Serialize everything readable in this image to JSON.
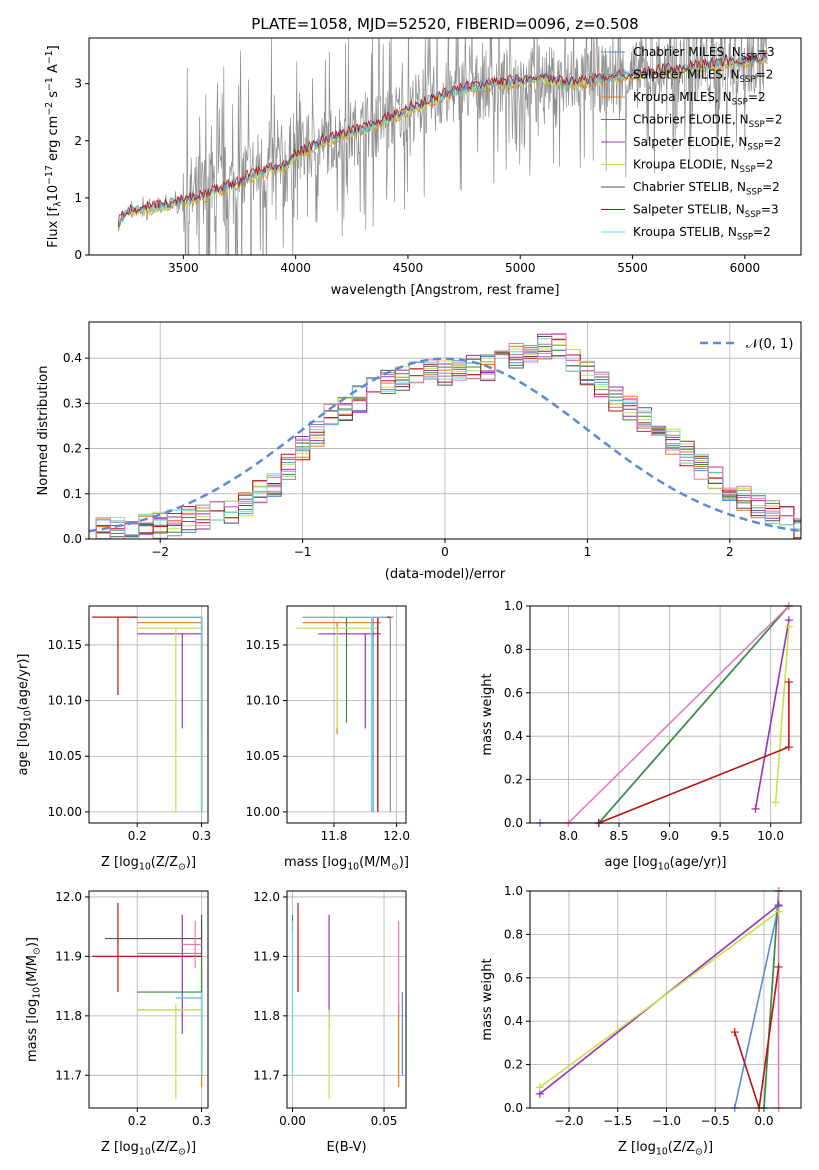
{
  "figure": {
    "title": "PLATE=1058, MJD=52520, FIBERID=0096, z=0.508",
    "models": [
      {
        "name": "Chabrier MILES, N",
        "n": "3",
        "color": "#5b8bd6"
      },
      {
        "name": "Salpeter MILES, N",
        "n": "2",
        "color": "#8e8e8e"
      },
      {
        "name": "Kroupa MILES, N",
        "n": "2",
        "color": "#e07b1f"
      },
      {
        "name": "Chabrier ELODIE, N",
        "n": "2",
        "color": "#3a8a3a"
      },
      {
        "name": "Salpeter ELODIE, N",
        "n": "2",
        "color": "#9632b8"
      },
      {
        "name": "Kroupa ELODIE, N",
        "n": "2",
        "color": "#c8e04a"
      },
      {
        "name": "Chabrier STELIB, N",
        "n": "2",
        "color": "#555555"
      },
      {
        "name": "Salpeter STELIB, N",
        "n": "3",
        "color": "#b81414"
      },
      {
        "name": "Kroupa STELIB, N",
        "n": "2",
        "color": "#70d4d8"
      }
    ],
    "ssp_subscript": "SSP",
    "pink_color": "#e97ab8"
  },
  "chart_data": [
    {
      "id": "spectrum",
      "type": "line",
      "title": "PLATE=1058, MJD=52520, FIBERID=0096, z=0.508",
      "xlabel": "wavelength [Angstrom, rest frame]",
      "ylabel": "Flux [f",
      "ylabel_parts": [
        "Flux [f",
        "λ",
        "10",
        "−17",
        " erg cm",
        "−2",
        " s",
        "−1",
        " A",
        "−1",
        "]"
      ],
      "xlim": [
        3080,
        6250
      ],
      "ylim": [
        0,
        3.8
      ],
      "xticks": [
        3500,
        4000,
        4500,
        5000,
        5500,
        6000
      ],
      "yticks": [
        0,
        1,
        2,
        3
      ],
      "data_range": [
        3210,
        6100
      ],
      "continuum": {
        "x": [
          3210,
          3250,
          3300,
          3400,
          3500,
          3600,
          3700,
          3750,
          3800,
          3900,
          3950,
          4000,
          4100,
          4200,
          4300,
          4400,
          4500,
          4600,
          4700,
          4800,
          4900,
          5000,
          5100,
          5200,
          5300,
          5400,
          5500,
          5600,
          5700,
          5800,
          5900,
          6000,
          6100
        ],
        "y": [
          0.55,
          0.75,
          0.8,
          0.85,
          0.95,
          1.05,
          1.2,
          1.25,
          1.4,
          1.5,
          1.55,
          1.75,
          1.95,
          2.1,
          2.2,
          2.35,
          2.55,
          2.7,
          2.85,
          2.95,
          3.0,
          3.05,
          3.1,
          3.0,
          3.05,
          3.1,
          3.15,
          3.2,
          3.25,
          3.3,
          3.35,
          3.4,
          3.45
        ]
      },
      "legend": "top-right",
      "grid": false
    },
    {
      "id": "residuals",
      "type": "line",
      "xlabel": "(data-model)/error",
      "ylabel": "Normed distribution",
      "xlim": [
        -2.5,
        2.5
      ],
      "ylim": [
        0,
        0.48
      ],
      "xticks": [
        -2,
        -1,
        0,
        1,
        2
      ],
      "yticks": [
        0.0,
        0.1,
        0.2,
        0.3,
        0.4
      ],
      "gaussian_label": "𝒩(0, 1)",
      "gaussian_color": "#5b8bd6",
      "bin_width": 0.1,
      "histogram_envelope": {
        "x": [
          -2.5,
          -2.0,
          -1.5,
          -1.2,
          -1.0,
          -0.8,
          -0.5,
          -0.2,
          0.0,
          0.3,
          0.6,
          0.8,
          1.0,
          1.2,
          1.5,
          1.8,
          2.0,
          2.3,
          2.5
        ],
        "y": [
          0.02,
          0.03,
          0.06,
          0.12,
          0.2,
          0.27,
          0.33,
          0.37,
          0.37,
          0.38,
          0.42,
          0.43,
          0.37,
          0.31,
          0.24,
          0.16,
          0.1,
          0.06,
          0.04
        ]
      },
      "legend": "top-right",
      "grid": true
    },
    {
      "id": "age-vs-z",
      "type": "scatter",
      "xlabel": "Z [log",
      "ylabel": "age  [log",
      "xlim": [
        0.125,
        0.31
      ],
      "ylim": [
        9.99,
        10.185
      ],
      "xticks": [
        0.2,
        0.3
      ],
      "yticks": [
        10.0,
        10.05,
        10.1,
        10.15
      ],
      "points": [
        {
          "model": 0,
          "x": 0.3,
          "y": 10.175,
          "xerr": [
            0.19,
            0.3
          ],
          "yerr": [
            10.0,
            10.175
          ]
        },
        {
          "model": 1,
          "x": 0.3,
          "y": 10.175,
          "xerr": [
            0.2,
            0.3
          ],
          "yerr": [
            10.0,
            10.175
          ]
        },
        {
          "model": 2,
          "x": 0.3,
          "y": 10.17,
          "xerr": [
            0.2,
            0.3
          ],
          "yerr": [
            10.0,
            10.17
          ]
        },
        {
          "model": 3,
          "x": 0.3,
          "y": 10.175,
          "xerr": [
            0.2,
            0.3
          ],
          "yerr": [
            10.0,
            10.175
          ]
        },
        {
          "model": 4,
          "x": 0.27,
          "y": 10.16,
          "xerr": [
            0.2,
            0.3
          ],
          "yerr": [
            10.075,
            10.16
          ]
        },
        {
          "model": 5,
          "x": 0.26,
          "y": 10.165,
          "xerr": [
            0.2,
            0.3
          ],
          "yerr": [
            10.0,
            10.165
          ]
        },
        {
          "model": 6,
          "x": 0.3,
          "y": 10.175,
          "xerr": [
            0.2,
            0.3
          ],
          "yerr": [
            10.07,
            10.175
          ]
        },
        {
          "model": 7,
          "x": 0.17,
          "y": 10.175,
          "xerr": [
            0.13,
            0.3
          ],
          "yerr": [
            10.105,
            10.175
          ]
        },
        {
          "model": 8,
          "x": 0.3,
          "y": 10.175,
          "xerr": [
            0.2,
            0.3
          ],
          "yerr": [
            10.0,
            10.175
          ]
        }
      ],
      "grid": true
    },
    {
      "id": "age-vs-mass",
      "type": "scatter",
      "xlabel": "mass [log",
      "ylabel": "",
      "xlim": [
        11.65,
        12.03
      ],
      "ylim": [
        9.99,
        10.185
      ],
      "xticks": [
        11.8,
        12.0
      ],
      "yticks": [
        10.0,
        10.05,
        10.1,
        10.15
      ],
      "points": [
        {
          "model": 0,
          "x": 11.925,
          "y": 10.175,
          "xerr": [
            11.7,
            11.98
          ],
          "yerr": [
            10.0,
            10.175
          ]
        },
        {
          "model": 1,
          "x": 11.98,
          "y": 10.175,
          "xerr": [
            11.72,
            11.99
          ],
          "yerr": [
            10.0,
            10.175
          ]
        },
        {
          "model": 2,
          "x": 11.81,
          "y": 10.17,
          "xerr": [
            11.7,
            11.95
          ],
          "yerr": [
            10.07,
            10.17
          ]
        },
        {
          "model": 3,
          "x": 11.84,
          "y": 10.175,
          "xerr": [
            11.7,
            11.98
          ],
          "yerr": [
            10.08,
            10.175
          ]
        },
        {
          "model": 4,
          "x": 11.9,
          "y": 10.16,
          "xerr": [
            11.75,
            11.95
          ],
          "yerr": [
            10.075,
            10.16
          ]
        },
        {
          "model": 5,
          "x": 11.81,
          "y": 10.165,
          "xerr": [
            11.68,
            11.94
          ],
          "yerr": [
            10.075,
            10.165
          ]
        },
        {
          "model": 6,
          "x": 11.94,
          "y": 10.175,
          "xerr": [
            11.75,
            11.97
          ],
          "yerr": [
            10.0,
            10.175
          ]
        },
        {
          "model": 7,
          "x": 11.94,
          "y": 10.175,
          "xerr": [
            11.8,
            11.98
          ],
          "yerr": [
            10.0,
            10.175
          ]
        },
        {
          "model": 8,
          "x": 11.92,
          "y": 10.175,
          "xerr": [
            11.7,
            11.97
          ],
          "yerr": [
            10.0,
            10.175
          ]
        }
      ],
      "grid": true
    },
    {
      "id": "massweight-vs-age",
      "type": "line",
      "xlabel": "age  [log",
      "ylabel": "mass weight",
      "xlim": [
        7.62,
        10.3
      ],
      "ylim": [
        0,
        1.0
      ],
      "xticks": [
        8.0,
        8.5,
        9.0,
        9.5,
        10.0
      ],
      "yticks": [
        0.0,
        0.2,
        0.4,
        0.6,
        0.8,
        1.0
      ],
      "series": [
        {
          "model": 0,
          "x": [
            7.72,
            8.3,
            10.18
          ],
          "y": [
            0,
            0,
            1.0
          ]
        },
        {
          "model": 8,
          "x": [
            8.3,
            10.18
          ],
          "y": [
            0,
            1.0
          ]
        },
        {
          "model": 3,
          "x": [
            8.3,
            10.18
          ],
          "y": [
            0,
            1.0
          ]
        },
        {
          "model": 9,
          "x": [
            8.0,
            10.18
          ],
          "y": [
            0,
            1.0
          ]
        },
        {
          "model": 4,
          "x": [
            9.85,
            10.18
          ],
          "y": [
            0.065,
            0.935
          ]
        },
        {
          "model": 5,
          "x": [
            10.05,
            10.18
          ],
          "y": [
            0.095,
            0.905
          ]
        },
        {
          "model": 7,
          "x": [
            8.3,
            10.18,
            10.18
          ],
          "y": [
            0,
            0.35,
            0.65
          ]
        }
      ],
      "grid": true
    },
    {
      "id": "mass-vs-z",
      "type": "scatter",
      "xlabel": "Z [log",
      "ylabel": "mass [log",
      "xlim": [
        0.125,
        0.31
      ],
      "ylim": [
        11.645,
        12.01
      ],
      "xticks": [
        0.2,
        0.3
      ],
      "yticks": [
        11.7,
        11.8,
        11.9,
        12.0
      ],
      "points": [
        {
          "model": 0,
          "x": 0.3,
          "y": 11.83,
          "xerr": [
            0.26,
            0.3
          ],
          "yerr": [
            11.7,
            11.88
          ]
        },
        {
          "model": 1,
          "x": 0.3,
          "y": 11.905,
          "xerr": [
            0.2,
            0.3
          ],
          "yerr": [
            11.74,
            11.96
          ]
        },
        {
          "model": 2,
          "x": 0.3,
          "y": 11.81,
          "xerr": [
            0.2,
            0.3
          ],
          "yerr": [
            11.68,
            11.82
          ]
        },
        {
          "model": 3,
          "x": 0.3,
          "y": 11.84,
          "xerr": [
            0.2,
            0.3
          ],
          "yerr": [
            11.7,
            11.9
          ]
        },
        {
          "model": 4,
          "x": 0.27,
          "y": 11.9,
          "xerr": [
            0.2,
            0.3
          ],
          "yerr": [
            11.77,
            11.97
          ]
        },
        {
          "model": 5,
          "x": 0.26,
          "y": 11.81,
          "xerr": [
            0.2,
            0.3
          ],
          "yerr": [
            11.66,
            11.82
          ]
        },
        {
          "model": 6,
          "x": 0.3,
          "y": 11.93,
          "xerr": [
            0.15,
            0.3
          ],
          "yerr": [
            11.9,
            11.97
          ]
        },
        {
          "model": 7,
          "x": 0.17,
          "y": 11.9,
          "xerr": [
            0.13,
            0.3
          ],
          "yerr": [
            11.84,
            11.99
          ]
        },
        {
          "model": 8,
          "x": 0.3,
          "y": 11.83,
          "xerr": [
            0.26,
            0.3
          ],
          "yerr": [
            11.7,
            11.84
          ]
        },
        {
          "model": 9,
          "x": 0.29,
          "y": 11.92,
          "xerr": [
            0.27,
            0.3
          ],
          "yerr": [
            11.88,
            11.96
          ]
        }
      ],
      "grid": true
    },
    {
      "id": "mass-vs-ebv",
      "type": "scatter",
      "xlabel": "E(B-V)",
      "ylabel": "",
      "xlim": [
        -0.003,
        0.062
      ],
      "ylim": [
        11.645,
        12.01
      ],
      "xticks": [
        0.0,
        0.05
      ],
      "yticks": [
        11.7,
        11.8,
        11.9,
        12.0
      ],
      "points": [
        {
          "model": 0,
          "x": 0.06,
          "y": 11.76,
          "yerr": [
            11.7,
            11.84
          ]
        },
        {
          "model": 2,
          "x": 0.058,
          "y": 11.75,
          "yerr": [
            11.68,
            11.82
          ]
        },
        {
          "model": 3,
          "x": 0.0,
          "y": 11.95,
          "yerr": [
            11.94,
            11.97
          ]
        },
        {
          "model": 4,
          "x": 0.02,
          "y": 11.9,
          "yerr": [
            11.78,
            11.97
          ]
        },
        {
          "model": 5,
          "x": 0.02,
          "y": 11.73,
          "yerr": [
            11.66,
            11.81
          ]
        },
        {
          "model": 7,
          "x": 0.003,
          "y": 11.9,
          "yerr": [
            11.84,
            11.99
          ]
        },
        {
          "model": 8,
          "x": 0.0,
          "y": 11.83,
          "yerr": [
            11.7,
            11.96
          ]
        },
        {
          "model": 9,
          "x": 0.058,
          "y": 11.88,
          "yerr": [
            11.8,
            11.96
          ]
        }
      ],
      "grid": true
    },
    {
      "id": "massweight-vs-z",
      "type": "line",
      "xlabel": "Z [log",
      "ylabel": "mass weight",
      "xlim": [
        -2.4,
        0.38
      ],
      "ylim": [
        0,
        1.0
      ],
      "xticks": [
        -2.0,
        -1.5,
        -1.0,
        -0.5,
        0.0
      ],
      "yticks": [
        0.0,
        0.2,
        0.4,
        0.6,
        0.8,
        1.0
      ],
      "series": [
        {
          "model": 0,
          "x": [
            -0.3,
            0.15,
            0.15
          ],
          "y": [
            0,
            0.93,
            1.0
          ]
        },
        {
          "model": 4,
          "x": [
            -2.3,
            0.15
          ],
          "y": [
            0.065,
            0.935
          ]
        },
        {
          "model": 5,
          "x": [
            -2.3,
            0.15
          ],
          "y": [
            0.095,
            0.905
          ]
        },
        {
          "model": 8,
          "x": [
            0.0,
            0.15
          ],
          "y": [
            0,
            1.0
          ]
        },
        {
          "model": 3,
          "x": [
            0.0,
            0.15
          ],
          "y": [
            0,
            1.0
          ]
        },
        {
          "model": 9,
          "x": [
            0.15,
            0.15
          ],
          "y": [
            0,
            1.0
          ]
        },
        {
          "model": 7,
          "x": [
            -0.3,
            -0.05,
            0.15
          ],
          "y": [
            0.35,
            0,
            0.65
          ]
        }
      ],
      "grid": true
    }
  ],
  "axis_label_parts": {
    "z_label": [
      "Z [log",
      "10",
      "(Z/Z",
      "⊙",
      ")]"
    ],
    "mass_label": [
      "mass [log",
      "10",
      "(M/M",
      "⊙",
      ")]"
    ],
    "age_label": [
      "age  [log",
      "10",
      "(age/yr)]"
    ]
  }
}
